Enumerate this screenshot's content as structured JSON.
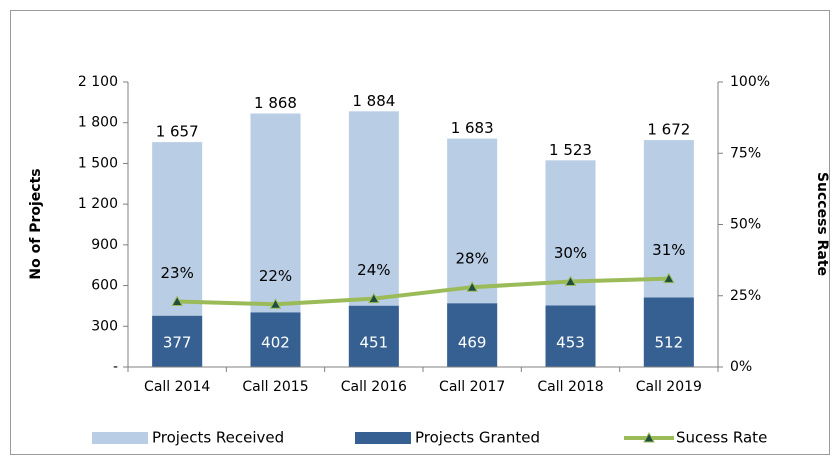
{
  "chart_data": {
    "type": "bar",
    "categories": [
      "Call 2014",
      "Call 2015",
      "Call 2016",
      "Call 2017",
      "Call 2018",
      "Call 2019"
    ],
    "series": [
      {
        "name": "Projects Received",
        "color": "#b9cde5",
        "values": [
          1657,
          1868,
          1884,
          1683,
          1523,
          1672
        ],
        "value_labels": [
          "1 657",
          "1 868",
          "1 884",
          "1 683",
          "1 523",
          "1 672"
        ]
      },
      {
        "name": "Projects Granted",
        "color": "#366092",
        "values": [
          377,
          402,
          451,
          469,
          453,
          512
        ]
      },
      {
        "name": "Sucess Rate",
        "type": "line",
        "axis": "y2",
        "color": "#9bbb59",
        "marker_color": "#1f4e3d",
        "values": [
          23,
          22,
          24,
          28,
          30,
          31
        ],
        "value_labels": [
          "23%",
          "22%",
          "24%",
          "28%",
          "30%",
          "31%"
        ]
      }
    ],
    "ylabel": "No of Projects",
    "y2label": "Success Rate",
    "ylim": [
      0,
      2100
    ],
    "yticks": [
      {
        "value": 0,
        "label": "-"
      },
      300,
      600,
      900,
      {
        "value": 1200,
        "label": "1 200"
      },
      {
        "value": 1500,
        "label": "1 500"
      },
      {
        "value": 1800,
        "label": "1 800"
      },
      {
        "value": 2100,
        "label": "2 100"
      }
    ],
    "y2lim": [
      0,
      100
    ],
    "y2ticks": [
      {
        "value": 0,
        "label": "0%"
      },
      {
        "value": 25,
        "label": "25%"
      },
      {
        "value": 50,
        "label": "50%"
      },
      {
        "value": 75,
        "label": "75%"
      },
      {
        "value": 100,
        "label": "100%"
      }
    ],
    "legend": "bottom"
  }
}
